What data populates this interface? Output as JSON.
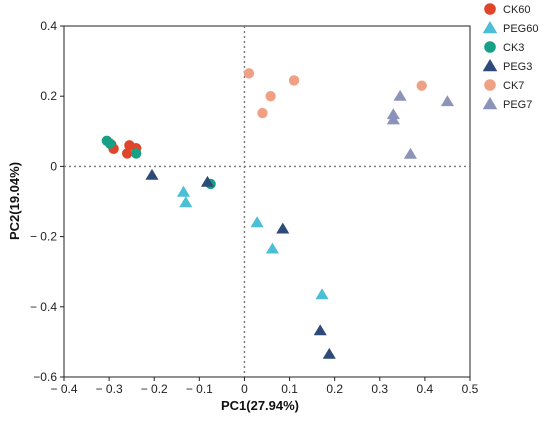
{
  "chart_data": {
    "type": "scatter",
    "title": "",
    "xlabel": "PC1(27.94%)",
    "ylabel": "PC2(19.04%)",
    "xlim": [
      -0.4,
      0.5
    ],
    "ylim": [
      -0.6,
      0.4
    ],
    "xticks": [
      "− 0.4",
      "− 0.3",
      "− 0.2",
      "− 0.1",
      "0",
      "0.1",
      "0.2",
      "0.3",
      "0.4",
      "0.5"
    ],
    "yticks": [
      "−0.6",
      "− 0.4",
      "− 0.2",
      "0",
      "0.2",
      "0.4"
    ],
    "xtick_values": [
      -0.4,
      -0.3,
      -0.2,
      -0.1,
      0,
      0.1,
      0.2,
      0.3,
      0.4,
      0.5
    ],
    "ytick_values": [
      -0.6,
      -0.4,
      -0.2,
      0,
      0.2,
      0.4
    ],
    "reference_lines": {
      "x": 0,
      "y": 0,
      "style": "dotted"
    },
    "grid": false,
    "legend_position": "outside-right",
    "series": [
      {
        "name": "CK60",
        "marker": "circle",
        "color": "#e0452b",
        "points": [
          [
            -0.295,
            0.062
          ],
          [
            -0.29,
            0.05
          ],
          [
            -0.255,
            0.06
          ],
          [
            -0.24,
            0.052
          ],
          [
            -0.26,
            0.037
          ]
        ]
      },
      {
        "name": "PEG60",
        "marker": "triangle",
        "color": "#4bbfd6",
        "points": [
          [
            -0.135,
            -0.073
          ],
          [
            -0.13,
            -0.103
          ],
          [
            0.028,
            -0.16
          ],
          [
            0.062,
            -0.235
          ],
          [
            0.172,
            -0.365
          ]
        ]
      },
      {
        "name": "CK3",
        "marker": "circle",
        "color": "#16a085",
        "points": [
          [
            -0.305,
            0.073
          ],
          [
            -0.298,
            0.065
          ],
          [
            -0.24,
            0.037
          ],
          [
            -0.075,
            -0.05
          ]
        ]
      },
      {
        "name": "PEG3",
        "marker": "triangle",
        "color": "#2d4a78",
        "points": [
          [
            -0.205,
            -0.025
          ],
          [
            -0.082,
            -0.045
          ],
          [
            0.085,
            -0.178
          ],
          [
            0.168,
            -0.468
          ],
          [
            0.188,
            -0.535
          ]
        ]
      },
      {
        "name": "CK7",
        "marker": "circle",
        "color": "#f0a184",
        "points": [
          [
            0.01,
            0.265
          ],
          [
            0.058,
            0.2
          ],
          [
            0.11,
            0.245
          ],
          [
            0.04,
            0.152
          ],
          [
            0.393,
            0.23
          ]
        ]
      },
      {
        "name": "PEG7",
        "marker": "triangle",
        "color": "#8b94b8",
        "points": [
          [
            0.345,
            0.2
          ],
          [
            0.45,
            0.185
          ],
          [
            0.33,
            0.148
          ],
          [
            0.33,
            0.133
          ],
          [
            0.368,
            0.035
          ]
        ]
      }
    ]
  }
}
